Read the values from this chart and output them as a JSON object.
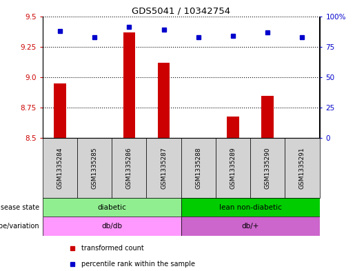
{
  "title": "GDS5041 / 10342754",
  "samples": [
    "GSM1335284",
    "GSM1335285",
    "GSM1335286",
    "GSM1335287",
    "GSM1335288",
    "GSM1335289",
    "GSM1335290",
    "GSM1335291"
  ],
  "transformed_count": [
    8.95,
    8.5,
    9.37,
    9.12,
    8.5,
    8.68,
    8.85,
    8.5
  ],
  "percentile_rank": [
    88,
    83,
    91,
    89,
    83,
    84,
    87,
    83
  ],
  "ylim_left": [
    8.5,
    9.5
  ],
  "ylim_right": [
    0,
    100
  ],
  "yticks_left": [
    8.5,
    8.75,
    9.0,
    9.25,
    9.5
  ],
  "yticks_right": [
    0,
    25,
    50,
    75,
    100
  ],
  "disease_state": [
    {
      "label": "diabetic",
      "start": 0,
      "end": 4,
      "color": "#90EE90"
    },
    {
      "label": "lean non-diabetic",
      "start": 4,
      "end": 8,
      "color": "#00CC00"
    }
  ],
  "genotype": [
    {
      "label": "db/db",
      "start": 0,
      "end": 4,
      "color": "#FF99FF"
    },
    {
      "label": "db/+",
      "start": 4,
      "end": 8,
      "color": "#CC66CC"
    }
  ],
  "bar_color": "#CC0000",
  "dot_color": "#0000CC",
  "grid_color": "#000000",
  "axis_bg": "#E8E8E8",
  "left_axis_color": "#CC0000",
  "right_axis_color": "#0000CC",
  "legend_items": [
    {
      "label": "transformed count",
      "color": "#CC0000",
      "marker": "s"
    },
    {
      "label": "percentile rank within the sample",
      "color": "#0000CC",
      "marker": "s"
    }
  ],
  "row_labels": [
    "disease state",
    "genotype/variation"
  ],
  "base_value": 8.5
}
